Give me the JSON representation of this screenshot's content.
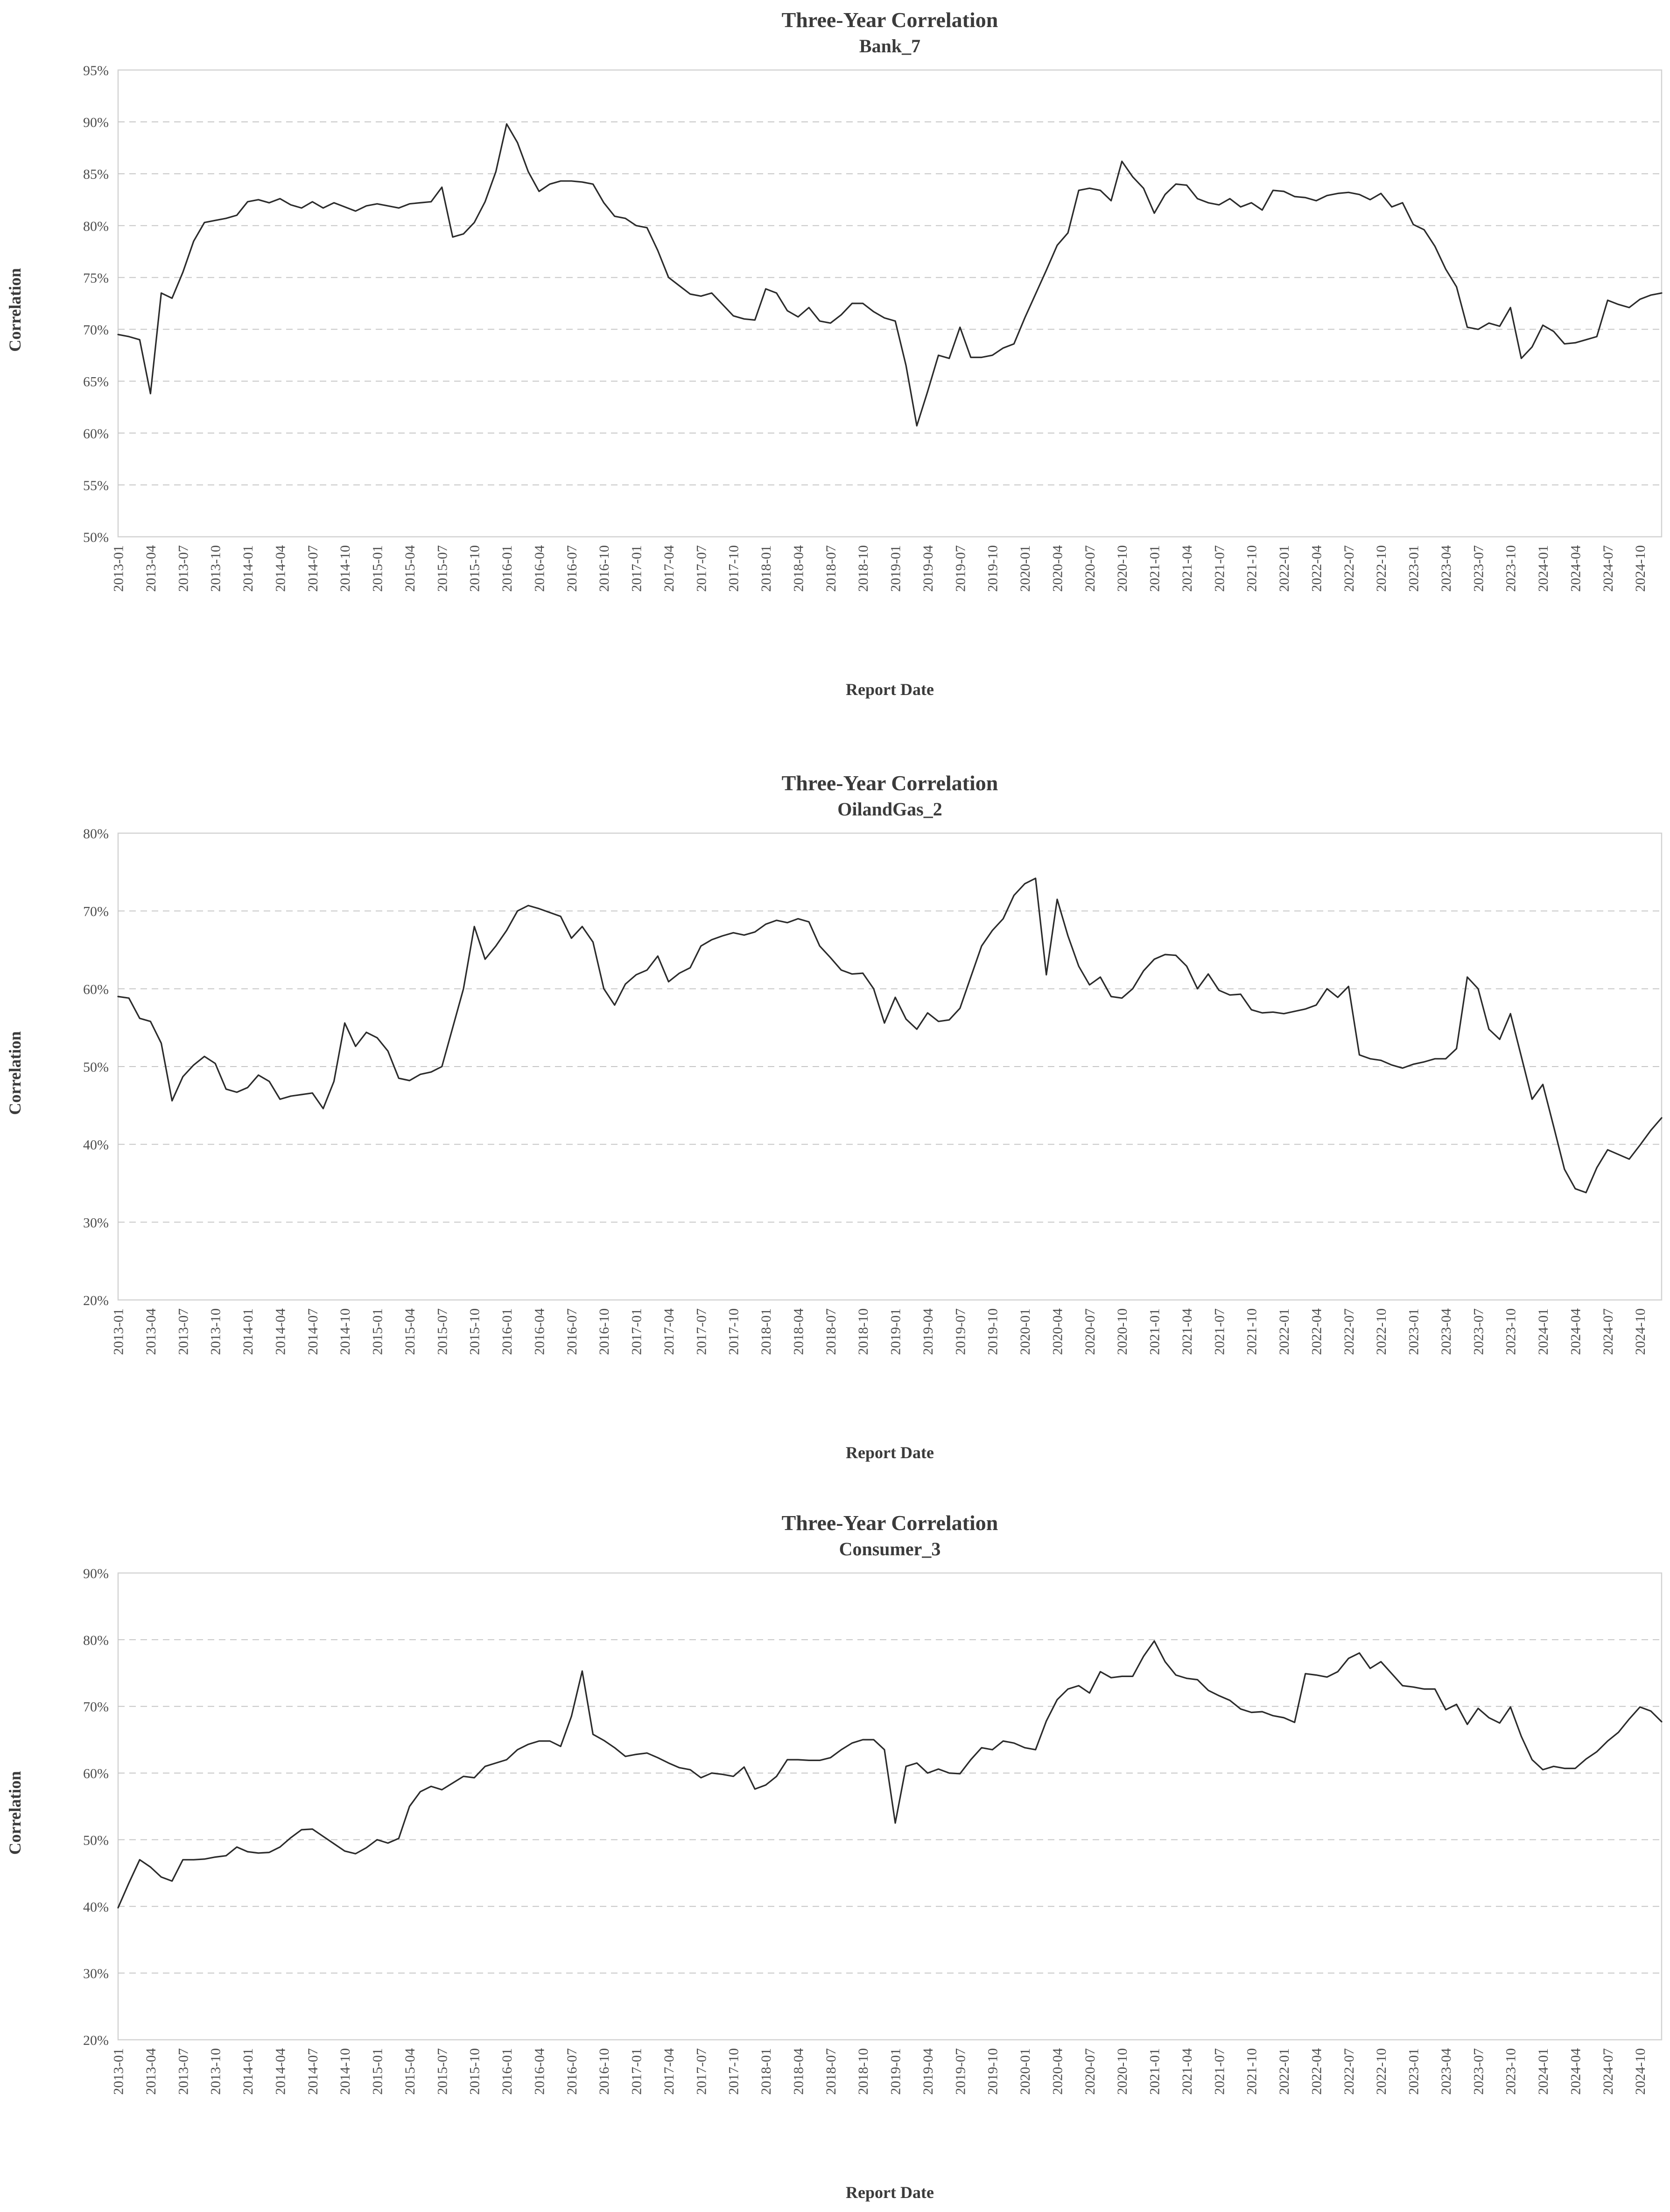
{
  "style": {
    "line_color": "#2b2b2b",
    "grid_color": "#c6c6c6",
    "border_color": "#d2d2d2",
    "tick_text_color": "#4d4d4d",
    "title_text_color": "#3b3b3b",
    "background": "#ffffff"
  },
  "chart_data": [
    {
      "type": "line",
      "title": "Three-Year Correlation",
      "subtitle": "Bank_7",
      "xlabel": "Report Date",
      "ylabel": "Correlation",
      "ylim": [
        50,
        95
      ],
      "y_ticks": [
        95,
        90,
        85,
        80,
        75,
        70,
        65,
        60,
        55,
        50
      ],
      "y_tick_labels": [
        "95%",
        "90%",
        "85%",
        "80%",
        "75%",
        "70%",
        "65%",
        "60%",
        "55%",
        "50%"
      ],
      "grid": "dashed-horizontal",
      "legend": "none",
      "x_start": "2013-01",
      "x_freq": "monthly",
      "x_tick_labels": [
        "2013-01",
        "2013-04",
        "2013-07",
        "2013-10",
        "2014-01",
        "2014-04",
        "2014-07",
        "2014-10",
        "2015-01",
        "2015-04",
        "2015-07",
        "2015-10",
        "2016-01",
        "2016-04",
        "2016-07",
        "2016-10",
        "2017-01",
        "2017-04",
        "2017-07",
        "2017-10",
        "2018-01",
        "2018-04",
        "2018-07",
        "2018-10",
        "2019-01",
        "2019-04",
        "2019-07",
        "2019-10",
        "2020-01",
        "2020-04",
        "2020-07",
        "2020-10",
        "2021-01",
        "2021-04",
        "2021-07",
        "2021-10",
        "2022-01",
        "2022-04",
        "2022-07",
        "2022-10",
        "2023-01",
        "2023-04",
        "2023-07",
        "2023-10",
        "2024-01",
        "2024-04",
        "2024-07",
        "2024-10"
      ],
      "values": [
        69.5,
        69.3,
        69.0,
        63.8,
        73.5,
        73.0,
        75.5,
        78.5,
        80.3,
        80.5,
        80.7,
        81.0,
        82.3,
        82.5,
        82.2,
        82.6,
        82.0,
        81.7,
        82.3,
        81.7,
        82.2,
        81.8,
        81.4,
        81.9,
        82.1,
        81.9,
        81.7,
        82.1,
        82.2,
        82.3,
        83.7,
        78.9,
        79.2,
        80.3,
        82.3,
        85.2,
        89.8,
        88.0,
        85.2,
        83.3,
        84.0,
        84.3,
        84.3,
        84.2,
        84.0,
        82.2,
        80.9,
        80.7,
        80.0,
        79.8,
        77.6,
        75.0,
        74.2,
        73.4,
        73.2,
        73.5,
        72.4,
        71.3,
        71.0,
        70.9,
        73.9,
        73.5,
        71.8,
        71.2,
        72.1,
        70.8,
        70.6,
        71.4,
        72.5,
        72.5,
        71.7,
        71.1,
        70.8,
        66.5,
        60.7,
        64.0,
        67.5,
        67.2,
        70.2,
        67.3,
        67.3,
        67.5,
        68.2,
        68.6,
        71.1,
        73.4,
        75.7,
        78.1,
        79.3,
        83.4,
        83.6,
        83.4,
        82.4,
        86.2,
        84.7,
        83.6,
        81.2,
        83.0,
        84.0,
        83.9,
        82.6,
        82.2,
        82.0,
        82.6,
        81.8,
        82.2,
        81.5,
        83.4,
        83.3,
        82.8,
        82.7,
        82.4,
        82.9,
        83.1,
        83.2,
        83.0,
        82.5,
        83.1,
        81.8,
        82.2,
        80.1,
        79.6,
        78.0,
        75.8,
        74.1,
        70.2,
        70.0,
        70.6,
        70.3,
        72.1,
        67.2,
        68.3,
        70.4,
        69.8,
        68.6,
        68.7,
        69.0,
        69.3,
        72.8,
        72.4,
        72.1,
        72.9,
        73.3,
        73.5
      ]
    },
    {
      "type": "line",
      "title": "Three-Year Correlation",
      "subtitle": "OilandGas_2",
      "xlabel": "Report Date",
      "ylabel": "Correlation",
      "ylim": [
        20,
        80
      ],
      "y_ticks": [
        80,
        70,
        60,
        50,
        40,
        30,
        20
      ],
      "y_tick_labels": [
        "80%",
        "70%",
        "60%",
        "50%",
        "40%",
        "30%",
        "20%"
      ],
      "grid": "dashed-horizontal",
      "legend": "none",
      "x_start": "2013-01",
      "x_freq": "monthly",
      "x_tick_labels": [
        "2013-01",
        "2013-04",
        "2013-07",
        "2013-10",
        "2014-01",
        "2014-04",
        "2014-07",
        "2014-10",
        "2015-01",
        "2015-04",
        "2015-07",
        "2015-10",
        "2016-01",
        "2016-04",
        "2016-07",
        "2016-10",
        "2017-01",
        "2017-04",
        "2017-07",
        "2017-10",
        "2018-01",
        "2018-04",
        "2018-07",
        "2018-10",
        "2019-01",
        "2019-04",
        "2019-07",
        "2019-10",
        "2020-01",
        "2020-04",
        "2020-07",
        "2020-10",
        "2021-01",
        "2021-04",
        "2021-07",
        "2021-10",
        "2022-01",
        "2022-04",
        "2022-07",
        "2022-10",
        "2023-01",
        "2023-04",
        "2023-07",
        "2023-10",
        "2024-01",
        "2024-04",
        "2024-07",
        "2024-10"
      ],
      "values": [
        59.0,
        58.8,
        56.2,
        55.8,
        53.0,
        45.6,
        48.7,
        50.2,
        51.3,
        50.4,
        47.1,
        46.7,
        47.3,
        48.9,
        48.1,
        45.8,
        46.2,
        46.4,
        46.6,
        44.6,
        48.1,
        55.6,
        52.6,
        54.4,
        53.7,
        52.0,
        48.5,
        48.2,
        49.0,
        49.3,
        50.0,
        55.0,
        60.0,
        68.0,
        63.8,
        65.5,
        67.5,
        70.0,
        70.7,
        70.3,
        69.8,
        69.3,
        66.5,
        68.0,
        66.0,
        60.0,
        57.9,
        60.6,
        61.8,
        62.4,
        64.2,
        60.9,
        62.0,
        62.7,
        65.5,
        66.3,
        66.8,
        67.2,
        66.9,
        67.3,
        68.3,
        68.8,
        68.5,
        69.0,
        68.6,
        65.5,
        64.0,
        62.4,
        61.9,
        62.0,
        60.0,
        55.6,
        58.9,
        56.1,
        54.8,
        56.9,
        55.8,
        56.0,
        57.5,
        61.5,
        65.5,
        67.5,
        69.0,
        72.0,
        73.5,
        74.2,
        61.8,
        71.5,
        66.8,
        62.9,
        60.5,
        61.5,
        59.0,
        58.8,
        60.0,
        62.3,
        63.8,
        64.4,
        64.3,
        62.9,
        60.0,
        61.9,
        59.8,
        59.2,
        59.3,
        57.3,
        56.9,
        57.0,
        56.8,
        57.1,
        57.4,
        57.9,
        60.0,
        58.9,
        60.3,
        51.5,
        51.0,
        50.8,
        50.2,
        49.8,
        50.3,
        50.6,
        51.0,
        51.0,
        52.3,
        61.5,
        60.0,
        54.8,
        53.5,
        56.8,
        51.3,
        45.8,
        47.7,
        42.3,
        36.8,
        34.3,
        33.8,
        37.0,
        39.3,
        38.7,
        38.1,
        39.9,
        41.8,
        43.4
      ]
    },
    {
      "type": "line",
      "title": "Three-Year Correlation",
      "subtitle": "Consumer_3",
      "xlabel": "Report Date",
      "ylabel": "Correlation",
      "ylim": [
        20,
        90
      ],
      "y_ticks": [
        90,
        80,
        70,
        60,
        50,
        40,
        30,
        20
      ],
      "y_tick_labels": [
        "90%",
        "80%",
        "70%",
        "60%",
        "50%",
        "40%",
        "30%",
        "20%"
      ],
      "grid": "dashed-horizontal",
      "legend": "none",
      "x_start": "2013-01",
      "x_freq": "monthly",
      "x_tick_labels": [
        "2013-01",
        "2013-04",
        "2013-07",
        "2013-10",
        "2014-01",
        "2014-04",
        "2014-07",
        "2014-10",
        "2015-01",
        "2015-04",
        "2015-07",
        "2015-10",
        "2016-01",
        "2016-04",
        "2016-07",
        "2016-10",
        "2017-01",
        "2017-04",
        "2017-07",
        "2017-10",
        "2018-01",
        "2018-04",
        "2018-07",
        "2018-10",
        "2019-01",
        "2019-04",
        "2019-07",
        "2019-10",
        "2020-01",
        "2020-04",
        "2020-07",
        "2020-10",
        "2021-01",
        "2021-04",
        "2021-07",
        "2021-10",
        "2022-01",
        "2022-04",
        "2022-07",
        "2022-10",
        "2023-01",
        "2023-04",
        "2023-07",
        "2023-10",
        "2024-01",
        "2024-04",
        "2024-07",
        "2024-10"
      ],
      "values": [
        39.8,
        43.5,
        47.0,
        45.9,
        44.4,
        43.8,
        47.0,
        47.0,
        47.1,
        47.4,
        47.6,
        48.9,
        48.2,
        48.0,
        48.1,
        48.9,
        50.3,
        51.5,
        51.6,
        50.5,
        49.4,
        48.3,
        47.9,
        48.8,
        50.0,
        49.5,
        50.2,
        55.0,
        57.2,
        58.0,
        57.5,
        58.5,
        59.5,
        59.3,
        61.0,
        61.5,
        62.0,
        63.5,
        64.3,
        64.8,
        64.8,
        64.0,
        68.5,
        75.3,
        65.8,
        64.9,
        63.8,
        62.5,
        62.8,
        63.0,
        62.3,
        61.5,
        60.8,
        60.5,
        59.3,
        60.0,
        59.8,
        59.5,
        60.9,
        57.6,
        58.2,
        59.5,
        62.0,
        62.0,
        61.9,
        61.9,
        62.3,
        63.5,
        64.5,
        65.0,
        65.0,
        63.5,
        52.5,
        61.0,
        61.5,
        60.0,
        60.6,
        60.0,
        59.9,
        62.0,
        63.8,
        63.5,
        64.8,
        64.5,
        63.8,
        63.5,
        67.8,
        71.0,
        72.6,
        73.1,
        72.0,
        75.2,
        74.3,
        74.5,
        74.5,
        77.5,
        79.8,
        76.7,
        74.7,
        74.2,
        74.0,
        72.4,
        71.6,
        70.9,
        69.6,
        69.1,
        69.2,
        68.6,
        68.3,
        67.6,
        74.9,
        74.7,
        74.4,
        75.2,
        77.2,
        78.0,
        75.7,
        76.7,
        74.9,
        73.1,
        72.9,
        72.6,
        72.6,
        69.5,
        70.3,
        67.3,
        69.7,
        68.3,
        67.5,
        69.9,
        65.5,
        62.0,
        60.5,
        61.0,
        60.7,
        60.7,
        62.1,
        63.2,
        64.8,
        66.1,
        68.1,
        69.9,
        69.3,
        67.7
      ]
    }
  ]
}
